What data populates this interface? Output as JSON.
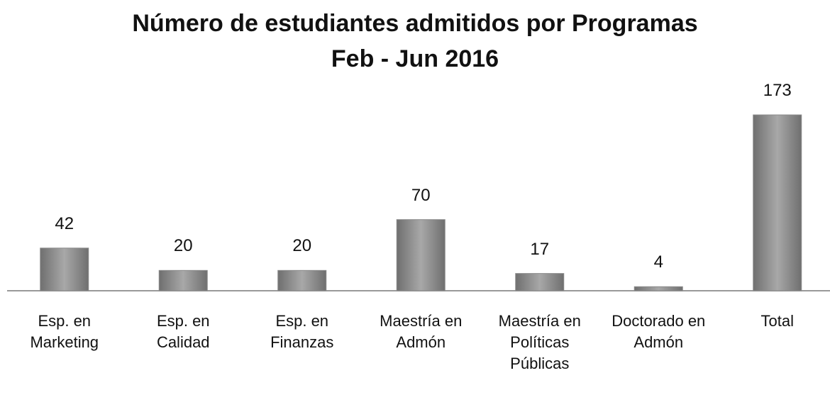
{
  "chart_data": {
    "type": "bar",
    "title": "Número de estudiantes admitidos por  Programas",
    "subtitle": "Feb - Jun  2016",
    "categories": [
      "Esp. en Marketing",
      "Esp. en Calidad",
      "Esp. en Finanzas",
      "Maestría en Admón",
      "Maestría en Políticas Públicas",
      "Doctorado en Admón",
      "Total"
    ],
    "values": [
      42,
      20,
      20,
      70,
      17,
      4,
      173
    ],
    "color": "#8a8a8a"
  }
}
